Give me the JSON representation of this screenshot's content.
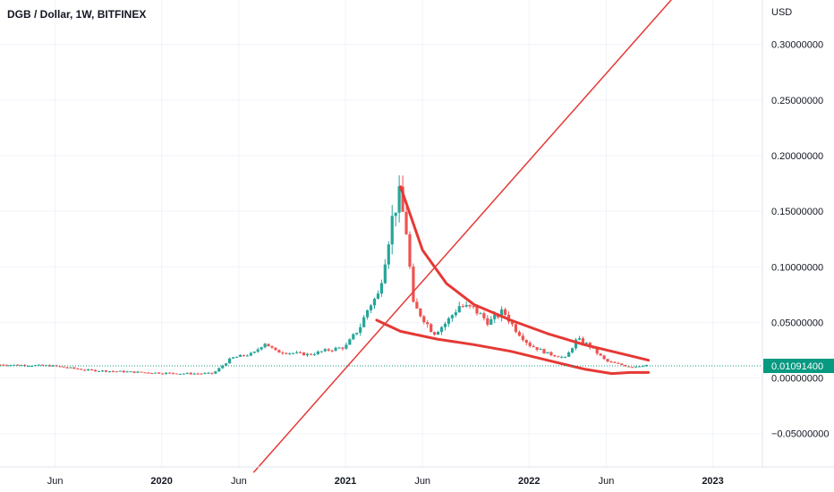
{
  "chart_data": {
    "type": "candlestick",
    "title": "DGB / Dollar, 1W, BITFINEX",
    "currency_label": "USD",
    "last_price_label": "0.01091400",
    "last_price": 0.010914,
    "ylim": [
      -0.08,
      0.34
    ],
    "y_ticks": [
      {
        "value": 0.3,
        "label": "0.30000000"
      },
      {
        "value": 0.25,
        "label": "0.25000000"
      },
      {
        "value": 0.2,
        "label": "0.20000000"
      },
      {
        "value": 0.15,
        "label": "0.15000000"
      },
      {
        "value": 0.1,
        "label": "0.10000000"
      },
      {
        "value": 0.05,
        "label": "0.05000000"
      },
      {
        "value": 0.0,
        "label": "0.00000000"
      },
      {
        "value": -0.05,
        "label": "−0.05000000"
      }
    ],
    "x_ticks": [
      {
        "t": 2019.42,
        "label": "Jun",
        "bold": false
      },
      {
        "t": 2020.0,
        "label": "2020",
        "bold": true
      },
      {
        "t": 2020.42,
        "label": "Jun",
        "bold": false
      },
      {
        "t": 2021.0,
        "label": "2021",
        "bold": true
      },
      {
        "t": 2021.42,
        "label": "Jun",
        "bold": false
      },
      {
        "t": 2022.0,
        "label": "2022",
        "bold": true
      },
      {
        "t": 2022.42,
        "label": "Jun",
        "bold": false
      },
      {
        "t": 2023.0,
        "label": "2023",
        "bold": true
      }
    ],
    "xlim": [
      2019.12,
      2023.27
    ],
    "anchors": [
      [
        2019.12,
        0.012
      ],
      [
        2019.4,
        0.011
      ],
      [
        2019.6,
        0.007
      ],
      [
        2019.9,
        0.005
      ],
      [
        2020.12,
        0.004
      ],
      [
        2020.28,
        0.004
      ],
      [
        2020.38,
        0.018
      ],
      [
        2020.5,
        0.022
      ],
      [
        2020.56,
        0.032
      ],
      [
        2020.62,
        0.024
      ],
      [
        2020.8,
        0.021
      ],
      [
        2020.9,
        0.025
      ],
      [
        2021.0,
        0.028
      ],
      [
        2021.08,
        0.046
      ],
      [
        2021.13,
        0.065
      ],
      [
        2021.18,
        0.075
      ],
      [
        2021.25,
        0.14
      ],
      [
        2021.29,
        0.165
      ],
      [
        2021.33,
        0.135
      ],
      [
        2021.37,
        0.065
      ],
      [
        2021.42,
        0.055
      ],
      [
        2021.48,
        0.04
      ],
      [
        2021.55,
        0.05
      ],
      [
        2021.62,
        0.065
      ],
      [
        2021.7,
        0.062
      ],
      [
        2021.78,
        0.05
      ],
      [
        2021.86,
        0.06
      ],
      [
        2021.92,
        0.045
      ],
      [
        2022.0,
        0.03
      ],
      [
        2022.1,
        0.022
      ],
      [
        2022.2,
        0.018
      ],
      [
        2022.26,
        0.035
      ],
      [
        2022.32,
        0.03
      ],
      [
        2022.42,
        0.015
      ],
      [
        2022.55,
        0.01
      ],
      [
        2022.65,
        0.012
      ]
    ],
    "trend_line": [
      [
        2020.5,
        -0.085
      ],
      [
        2022.8,
        0.345
      ]
    ],
    "upper_curve": [
      [
        2021.3,
        0.172
      ],
      [
        2021.42,
        0.115
      ],
      [
        2021.55,
        0.085
      ],
      [
        2021.7,
        0.066
      ],
      [
        2021.9,
        0.052
      ],
      [
        2022.1,
        0.04
      ],
      [
        2022.3,
        0.03
      ],
      [
        2022.5,
        0.022
      ],
      [
        2022.65,
        0.016
      ]
    ],
    "lower_curve": [
      [
        2021.17,
        0.052
      ],
      [
        2021.3,
        0.042
      ],
      [
        2021.5,
        0.035
      ],
      [
        2021.7,
        0.03
      ],
      [
        2021.9,
        0.024
      ],
      [
        2022.1,
        0.016
      ],
      [
        2022.3,
        0.008
      ],
      [
        2022.45,
        0.004
      ],
      [
        2022.55,
        0.005
      ],
      [
        2022.65,
        0.005
      ]
    ],
    "colors": {
      "up": "#26a69a",
      "down": "#ef5350",
      "drawing": "#e53935",
      "last_price": "#089981",
      "grid": "#f0f3fa"
    }
  }
}
